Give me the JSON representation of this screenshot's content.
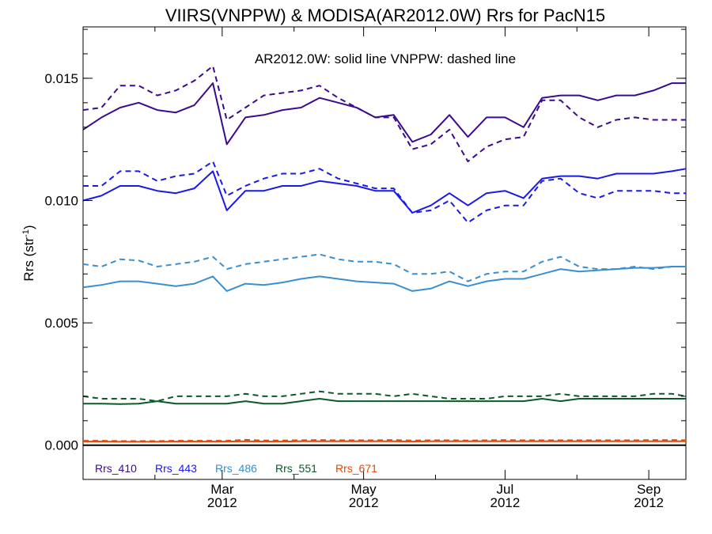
{
  "chart_data": {
    "type": "line",
    "title": "VIIRS(VNPPW) & MODISA(AR2012.0W)  Rrs for PacN15",
    "ylabel": "Rrs (str",
    "ylabel_sup": "-1",
    "ylabel_close": ")",
    "annotation": "AR2012.0W: solid line   VNPPW: dashed line",
    "ylim": [
      -0.0014,
      0.0171
    ],
    "xlim": [
      "2012-01-01",
      "2012-09-17"
    ],
    "yticks": [
      {
        "value": 0.0,
        "label": "0.000"
      },
      {
        "value": 0.005,
        "label": "0.005"
      },
      {
        "value": 0.01,
        "label": "0.010"
      },
      {
        "value": 0.015,
        "label": "0.015"
      }
    ],
    "xticks": [
      {
        "date": "2012-03-01",
        "month": "Mar",
        "year": "2012"
      },
      {
        "date": "2012-05-01",
        "month": "May",
        "year": "2012"
      },
      {
        "date": "2012-07-01",
        "month": "Jul",
        "year": "2012"
      },
      {
        "date": "2012-09-01",
        "month": "Sep",
        "year": "2012"
      }
    ],
    "x": [
      "2012-01-01",
      "2012-01-09",
      "2012-01-17",
      "2012-01-25",
      "2012-02-02",
      "2012-02-10",
      "2012-02-18",
      "2012-02-26",
      "2012-03-03",
      "2012-03-11",
      "2012-03-19",
      "2012-03-27",
      "2012-04-04",
      "2012-04-12",
      "2012-04-20",
      "2012-04-28",
      "2012-05-06",
      "2012-05-14",
      "2012-05-22",
      "2012-05-30",
      "2012-06-07",
      "2012-06-15",
      "2012-06-23",
      "2012-07-01",
      "2012-07-09",
      "2012-07-17",
      "2012-07-25",
      "2012-08-02",
      "2012-08-10",
      "2012-08-18",
      "2012-08-26",
      "2012-09-03",
      "2012-09-11",
      "2012-09-17"
    ],
    "series": [
      {
        "name": "Rrs_410",
        "color": "#3c0a8c",
        "style": "solid",
        "values": [
          0.0129,
          0.0134,
          0.0138,
          0.014,
          0.0137,
          0.0136,
          0.0139,
          0.0148,
          0.0123,
          0.0134,
          0.0135,
          0.0137,
          0.0138,
          0.0142,
          0.014,
          0.0138,
          0.0134,
          0.0135,
          0.0124,
          0.0127,
          0.0135,
          0.0126,
          0.0134,
          0.0134,
          0.013,
          0.0142,
          0.0143,
          0.0143,
          0.0141,
          0.0143,
          0.0143,
          0.0145,
          0.0148,
          0.0148
        ]
      },
      {
        "name": "Rrs_410",
        "color": "#3c0a8c",
        "style": "dashed",
        "values": [
          0.0137,
          0.0138,
          0.0147,
          0.0147,
          0.0143,
          0.0145,
          0.0149,
          0.0155,
          0.0133,
          0.0138,
          0.0143,
          0.0144,
          0.0145,
          0.0147,
          0.0142,
          0.0138,
          0.0134,
          0.0134,
          0.0121,
          0.0123,
          0.0129,
          0.0116,
          0.0122,
          0.0125,
          0.0126,
          0.0141,
          0.0141,
          0.0134,
          0.013,
          0.0133,
          0.0134,
          0.0133,
          0.0133,
          0.0133
        ]
      },
      {
        "name": "Rrs_443",
        "color": "#1a1ae6",
        "style": "solid",
        "values": [
          0.01,
          0.0102,
          0.0106,
          0.0106,
          0.0104,
          0.0103,
          0.0105,
          0.0112,
          0.0096,
          0.0104,
          0.0104,
          0.0106,
          0.0106,
          0.0108,
          0.0107,
          0.0106,
          0.0104,
          0.0104,
          0.0095,
          0.0098,
          0.0103,
          0.0098,
          0.0103,
          0.0104,
          0.0101,
          0.0109,
          0.011,
          0.011,
          0.0109,
          0.0111,
          0.0111,
          0.0111,
          0.0112,
          0.0113
        ]
      },
      {
        "name": "Rrs_443",
        "color": "#1a1ae6",
        "style": "dashed",
        "values": [
          0.0106,
          0.0106,
          0.0112,
          0.0112,
          0.0108,
          0.011,
          0.0111,
          0.0116,
          0.0102,
          0.0106,
          0.0109,
          0.0111,
          0.0111,
          0.0113,
          0.0109,
          0.0107,
          0.0105,
          0.0105,
          0.0095,
          0.0096,
          0.01,
          0.0091,
          0.0096,
          0.0098,
          0.0098,
          0.0108,
          0.0109,
          0.0103,
          0.0101,
          0.0104,
          0.0104,
          0.0104,
          0.0103,
          0.0103
        ]
      },
      {
        "name": "Rrs_486",
        "color": "#3a8fd0",
        "style": "solid",
        "values": [
          0.00645,
          0.00655,
          0.0067,
          0.0067,
          0.0066,
          0.0065,
          0.0066,
          0.0069,
          0.0063,
          0.0066,
          0.00655,
          0.00665,
          0.0068,
          0.0069,
          0.0068,
          0.0067,
          0.00665,
          0.0066,
          0.0063,
          0.0064,
          0.0067,
          0.0065,
          0.0067,
          0.0068,
          0.0068,
          0.007,
          0.0072,
          0.0071,
          0.00715,
          0.0072,
          0.00725,
          0.00725,
          0.0073,
          0.0073
        ]
      },
      {
        "name": "Rrs_486",
        "color": "#3a8fd0",
        "style": "dashed",
        "values": [
          0.0074,
          0.0073,
          0.0076,
          0.00755,
          0.0073,
          0.0074,
          0.0075,
          0.0077,
          0.0072,
          0.0074,
          0.0075,
          0.0076,
          0.0077,
          0.0078,
          0.0076,
          0.0075,
          0.0075,
          0.0074,
          0.007,
          0.007,
          0.0071,
          0.0067,
          0.007,
          0.0071,
          0.0071,
          0.0075,
          0.0077,
          0.0073,
          0.0072,
          0.0072,
          0.0073,
          0.0072,
          0.0073,
          0.0073
        ]
      },
      {
        "name": "Rrs_551",
        "color": "#0a5a2a",
        "style": "solid",
        "values": [
          0.0017,
          0.0017,
          0.00168,
          0.0017,
          0.0018,
          0.0017,
          0.0017,
          0.0017,
          0.0017,
          0.0018,
          0.0017,
          0.0017,
          0.0018,
          0.0019,
          0.0018,
          0.0018,
          0.0018,
          0.0018,
          0.0018,
          0.0018,
          0.0018,
          0.0018,
          0.0018,
          0.0018,
          0.0018,
          0.0019,
          0.0018,
          0.0019,
          0.0019,
          0.0019,
          0.0019,
          0.0019,
          0.0019,
          0.0019
        ]
      },
      {
        "name": "Rrs_551",
        "color": "#0a5a2a",
        "style": "dashed",
        "values": [
          0.002,
          0.0019,
          0.0019,
          0.0019,
          0.0018,
          0.002,
          0.002,
          0.002,
          0.002,
          0.0021,
          0.002,
          0.002,
          0.0021,
          0.0022,
          0.0021,
          0.0021,
          0.0021,
          0.002,
          0.0021,
          0.002,
          0.0019,
          0.0019,
          0.0019,
          0.002,
          0.002,
          0.002,
          0.0021,
          0.002,
          0.002,
          0.002,
          0.002,
          0.0021,
          0.0021,
          0.002
        ]
      },
      {
        "name": "Rrs_671",
        "color": "#e04a0a",
        "style": "solid",
        "values": [
          0.00015,
          0.00015,
          0.00014,
          0.00014,
          0.00014,
          0.00015,
          0.00015,
          0.00015,
          0.00015,
          0.00016,
          0.00015,
          0.00015,
          0.00016,
          0.00016,
          0.00016,
          0.00016,
          0.00016,
          0.00016,
          0.00015,
          0.00016,
          0.00016,
          0.00016,
          0.00016,
          0.00016,
          0.00016,
          0.00016,
          0.00016,
          0.00016,
          0.00016,
          0.00016,
          0.00016,
          0.00016,
          0.00016,
          0.00016
        ]
      },
      {
        "name": "Rrs_671",
        "color": "#e04a0a",
        "style": "dashed",
        "values": [
          0.00018,
          0.00018,
          0.00017,
          0.00017,
          0.00017,
          0.00018,
          0.00018,
          0.00018,
          0.00018,
          0.00022,
          0.00019,
          0.00019,
          0.0002,
          0.00021,
          0.0002,
          0.0002,
          0.0002,
          0.00021,
          0.00019,
          0.0002,
          0.0002,
          0.00019,
          0.0002,
          0.00021,
          0.0002,
          0.0002,
          0.0002,
          0.0002,
          0.0002,
          0.0002,
          0.0002,
          0.00021,
          0.00021,
          0.0002
        ]
      }
    ],
    "legend": [
      {
        "name": "Rrs_410",
        "color": "#3c0a8c"
      },
      {
        "name": "Rrs_443",
        "color": "#1a1ae6"
      },
      {
        "name": "Rrs_486",
        "color": "#3a8fd0"
      },
      {
        "name": "Rrs_551",
        "color": "#0a5a2a"
      },
      {
        "name": "Rrs_671",
        "color": "#e04a0a"
      }
    ],
    "zero_line": 0.0,
    "legend_position": "bottom-left",
    "grid": false
  }
}
